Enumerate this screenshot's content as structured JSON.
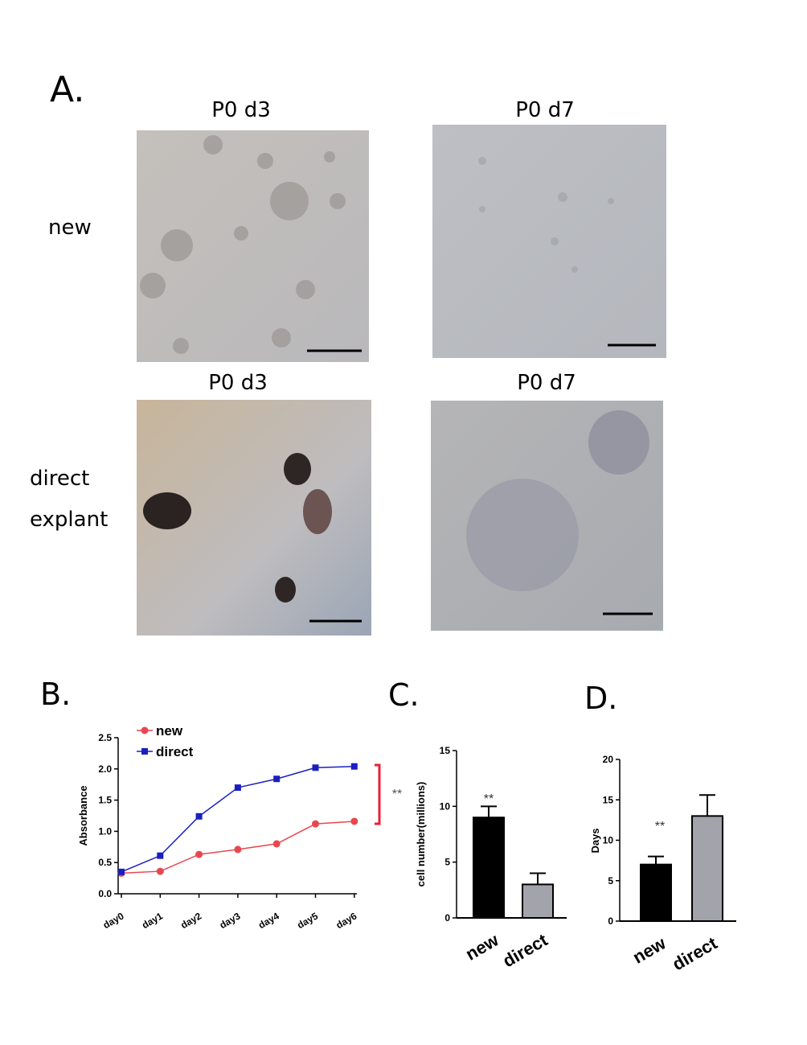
{
  "panel_a": {
    "label": "A.",
    "columns": [
      "P0 d3",
      "P0 d7",
      "P0 d3",
      "P0 d7"
    ],
    "rows": [
      "new",
      "direct",
      "explant"
    ]
  },
  "chart_data": [
    {
      "type": "line",
      "panel": "B.",
      "y_label": "Absorbance",
      "categories": [
        "day0",
        "day1",
        "day2",
        "day3",
        "day4",
        "day5",
        "day6"
      ],
      "series": [
        {
          "name": "new",
          "color": "#e8474f",
          "marker": "circle",
          "values": [
            0.33,
            0.36,
            0.63,
            0.71,
            0.8,
            1.12,
            1.16
          ]
        },
        {
          "name": "direct",
          "color": "#1b1fbf",
          "marker": "square",
          "values": [
            0.35,
            0.61,
            1.24,
            1.7,
            1.84,
            2.02,
            2.04
          ]
        }
      ],
      "ylim": [
        0,
        2.5
      ],
      "yticks": [
        {
          "value": 0,
          "label": "0.0"
        },
        0.5,
        {
          "value": 1,
          "label": "1.0"
        },
        1.5,
        {
          "value": 2,
          "label": "2.0"
        },
        2.5
      ],
      "annotation": "**",
      "annotation_color": "#e8203a"
    },
    {
      "type": "bar",
      "panel": "C.",
      "y_label": "cell number(millions)",
      "categories": [
        "new",
        "direct"
      ],
      "values": [
        9,
        3
      ],
      "errors": [
        1,
        1
      ],
      "colors": [
        "#000000",
        "#a3a3ab"
      ],
      "ylim": [
        0,
        15
      ],
      "yticks": [
        0,
        5,
        10,
        15
      ],
      "annotation": "**"
    },
    {
      "type": "bar",
      "panel": "D.",
      "y_label": "Days",
      "categories": [
        "new",
        "direct"
      ],
      "values": [
        7,
        13
      ],
      "errors": [
        1,
        2.6
      ],
      "colors": [
        "#000000",
        "#a3a3ab"
      ],
      "ylim": [
        0,
        20
      ],
      "yticks": [
        0,
        5,
        10,
        15,
        20
      ],
      "annotation": "**"
    }
  ]
}
